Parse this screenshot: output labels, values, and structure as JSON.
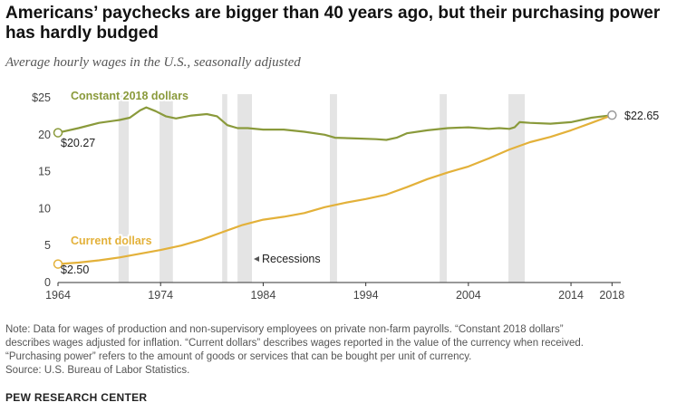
{
  "title": "Americans’ paychecks are bigger than 40 years ago, but their purchasing power has hardly budged",
  "subtitle": "Average hourly wages in the U.S., seasonally adjusted",
  "notes": [
    "Note: Data for wages of production and non-supervisory employees on private non-farm payrolls. “Constant 2018 dollars”",
    "describes wages adjusted for inflation. “Current dollars” describes wages reported in the value of the currency when received.",
    "“Purchasing power” refers to the amount of goods or services that can be bought per unit of currency.",
    "Source: U.S. Bureau of Labor Statistics."
  ],
  "brand": "PEW RESEARCH CENTER",
  "colors": {
    "constant": "#8a9a3b",
    "current": "#e3b13a",
    "recession": "#e4e4e4",
    "axis": "#333333"
  },
  "chart_data": {
    "type": "line",
    "xlim": [
      1964,
      2018.5
    ],
    "ylim": [
      0,
      25
    ],
    "x_ticks": [
      1964,
      1974,
      1984,
      1994,
      2004,
      2014,
      2018
    ],
    "x_tick_labels": [
      "1964",
      "1974",
      "1984",
      "1994",
      "2004",
      "2014",
      "2018"
    ],
    "y_ticks": [
      0,
      5,
      10,
      15,
      20,
      25
    ],
    "y_tick_labels": [
      "0",
      "5",
      "10",
      "15",
      "20",
      "$25"
    ],
    "recession_label": "Recessions",
    "recessions": [
      [
        1969.9,
        1970.9
      ],
      [
        1973.9,
        1975.2
      ],
      [
        1980.0,
        1980.5
      ],
      [
        1981.5,
        1982.9
      ],
      [
        1990.5,
        1991.2
      ],
      [
        2001.2,
        2001.9
      ],
      [
        2007.9,
        2009.5
      ]
    ],
    "series": [
      {
        "name": "Constant 2018 dollars",
        "start_label": "$20.27",
        "x": [
          1964,
          1966,
          1968,
          1970,
          1971,
          1972,
          1972.6,
          1973.5,
          1974.5,
          1975.5,
          1977,
          1978.5,
          1979.5,
          1980.5,
          1981.5,
          1982.5,
          1984,
          1986,
          1988,
          1990,
          1991,
          1993,
          1995,
          1996,
          1997,
          1998,
          2000,
          2002,
          2004,
          2006,
          2007,
          2008,
          2008.5,
          2009,
          2010,
          2012,
          2014,
          2016,
          2018
        ],
        "y": [
          20.27,
          20.9,
          21.6,
          22.0,
          22.3,
          23.3,
          23.7,
          23.2,
          22.5,
          22.2,
          22.6,
          22.8,
          22.5,
          21.3,
          20.9,
          20.9,
          20.7,
          20.7,
          20.4,
          20.0,
          19.6,
          19.5,
          19.4,
          19.3,
          19.6,
          20.2,
          20.6,
          20.9,
          21.0,
          20.8,
          20.9,
          20.8,
          21.0,
          21.7,
          21.6,
          21.5,
          21.7,
          22.3,
          22.65
        ]
      },
      {
        "name": "Current dollars",
        "start_label": "$2.50",
        "end_label": "$22.65",
        "x": [
          1964,
          1966,
          1968,
          1970,
          1972,
          1974,
          1976,
          1978,
          1980,
          1982,
          1984,
          1986,
          1988,
          1990,
          1992,
          1994,
          1996,
          1998,
          2000,
          2002,
          2004,
          2006,
          2008,
          2010,
          2012,
          2014,
          2016,
          2018
        ],
        "y": [
          2.5,
          2.7,
          3.0,
          3.4,
          3.9,
          4.4,
          5.0,
          5.8,
          6.8,
          7.8,
          8.5,
          8.9,
          9.4,
          10.2,
          10.8,
          11.3,
          11.9,
          12.9,
          14.0,
          14.9,
          15.7,
          16.8,
          18.0,
          19.0,
          19.7,
          20.6,
          21.6,
          22.65
        ]
      }
    ]
  }
}
